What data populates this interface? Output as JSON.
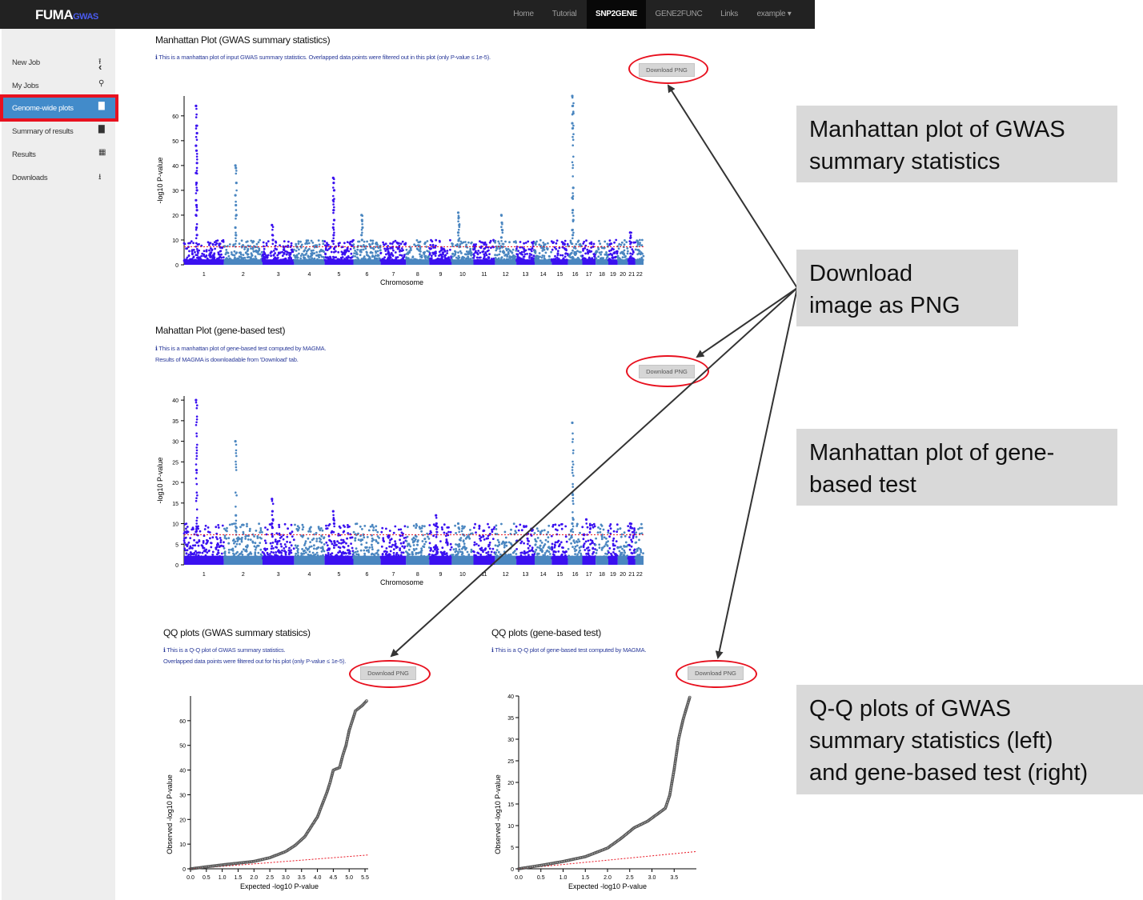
{
  "navbar": {
    "brand_main": "FUMA",
    "brand_sub": "GWAS",
    "items": [
      {
        "label": "Home",
        "active": false
      },
      {
        "label": "Tutorial",
        "active": false
      },
      {
        "label": "SNP2GENE",
        "active": true
      },
      {
        "label": "GENE2FUNC",
        "active": false
      },
      {
        "label": "Links",
        "active": false
      },
      {
        "label": "example ▾",
        "active": false
      }
    ]
  },
  "sidebar": {
    "collapse_icon": "chevron-left-icon",
    "items": [
      {
        "label": "New Job",
        "icon": "upload-icon",
        "active": false
      },
      {
        "label": "My Jobs",
        "icon": "search-icon",
        "active": false
      },
      {
        "label": "Genome-wide plots",
        "icon": "bar-chart-icon",
        "active": true
      },
      {
        "label": "Summary of results",
        "icon": "bar-chart-icon",
        "active": false
      },
      {
        "label": "Results",
        "icon": "table-icon",
        "active": false
      },
      {
        "label": "Downloads",
        "icon": "download-icon",
        "active": false
      }
    ]
  },
  "sections": {
    "manhattan_snp": {
      "title": "Manhattan Plot (GWAS summary statistics)",
      "note": "ℹ This is a manhattan plot of input GWAS summary statistics. Overlapped data points were filtered out in this plot (only P-value ≤ 1e-5).",
      "button": "Download PNG"
    },
    "manhattan_gene": {
      "title": "Mahattan Plot (gene-based test)",
      "note1": "ℹ This is a manhattan plot of gene-based test computed by MAGMA.",
      "note2": "Results of MAGMA is downloadable from 'Download' tab.",
      "button": "Download PNG"
    },
    "qq_snp": {
      "title": "QQ plots (GWAS summary statisics)",
      "note1": "ℹ This is a Q-Q plot of GWAS summary statistics.",
      "note2": "Overlapped data points were filtered out for his plot (only P-value ≤ 1e-5).",
      "button": "Download PNG"
    },
    "qq_gene": {
      "title": "QQ plots (gene-based test)",
      "note1": "ℹ This is a Q-Q plot of gene-based test computed by MAGMA.",
      "button": "Download PNG"
    }
  },
  "callouts": {
    "c1": [
      "Manhattan  plot of GWAS",
      "summary statistics"
    ],
    "c2": [
      "Download",
      "image as PNG"
    ],
    "c3": [
      "Manhattan  plot of gene-",
      "based test"
    ],
    "c4": [
      "Q-Q plots of GWAS",
      "summary statistics (left)",
      "and gene-based test (right)"
    ]
  },
  "colors": {
    "navbar": "#222222",
    "sidebar": "#eeeeee",
    "active_tab": "#428bca",
    "highlight_red": "#e8111f",
    "chr_odd": "#3a10f0",
    "chr_even": "#4a86c0",
    "threshold": "#e8111f",
    "callout_bg": "#d9d9d9"
  },
  "chart_data": [
    {
      "type": "scatter",
      "id": "manhattan_snp",
      "xlabel": "Chromosome",
      "ylabel": "-log10 P-value",
      "ylim": [
        0,
        68
      ],
      "yticks": [
        0,
        10,
        20,
        30,
        40,
        50,
        60
      ],
      "threshold": 7.3,
      "categories": [
        "1",
        "2",
        "3",
        "4",
        "5",
        "6",
        "7",
        "8",
        "9",
        "10",
        "11",
        "12",
        "13",
        "14",
        "15",
        "16",
        "17",
        "18",
        "19",
        "20",
        "21",
        "22"
      ],
      "peaks": [
        {
          "chr": "1",
          "values": [
            64,
            56,
            53,
            48,
            46,
            41,
            37,
            33,
            30,
            26,
            24,
            22,
            20,
            15,
            12
          ]
        },
        {
          "chr": "2",
          "values": [
            40,
            39,
            33,
            28,
            24,
            20,
            15,
            12
          ]
        },
        {
          "chr": "3",
          "values": [
            16,
            12,
            10
          ]
        },
        {
          "chr": "5",
          "values": [
            35,
            33,
            30,
            26,
            22,
            18,
            15,
            12
          ]
        },
        {
          "chr": "6",
          "values": [
            20,
            18,
            15,
            12,
            10
          ]
        },
        {
          "chr": "10",
          "values": [
            21,
            19,
            16,
            13,
            10
          ]
        },
        {
          "chr": "12",
          "values": [
            20,
            17,
            14,
            11
          ]
        },
        {
          "chr": "16",
          "values": [
            68,
            64,
            61,
            57,
            55,
            31,
            27,
            22,
            18,
            14,
            12
          ]
        },
        {
          "chr": "21",
          "values": [
            13,
            11,
            9
          ]
        }
      ]
    },
    {
      "type": "scatter",
      "id": "manhattan_gene",
      "xlabel": "Chromosome",
      "ylabel": "-log10 P-value",
      "ylim": [
        0,
        41
      ],
      "yticks": [
        0,
        5,
        10,
        15,
        20,
        25,
        30,
        35,
        40
      ],
      "threshold": 7.3,
      "categories": [
        "1",
        "2",
        "3",
        "4",
        "5",
        "6",
        "7",
        "8",
        "9",
        "10",
        "11",
        "12",
        "13",
        "14",
        "15",
        "16",
        "17",
        "18",
        "19",
        "20",
        "21",
        "22"
      ],
      "peaks": [
        {
          "chr": "1",
          "values": [
            40,
            23,
            9,
            8
          ]
        },
        {
          "chr": "2",
          "values": [
            30,
            12,
            9
          ]
        },
        {
          "chr": "3",
          "values": [
            16,
            13,
            11,
            10,
            9
          ]
        },
        {
          "chr": "5",
          "values": [
            13,
            11,
            10
          ]
        },
        {
          "chr": "9",
          "values": [
            12,
            10
          ]
        },
        {
          "chr": "10",
          "values": [
            10,
            9
          ]
        },
        {
          "chr": "16",
          "values": [
            34.5,
            17,
            11,
            10
          ]
        },
        {
          "chr": "17",
          "values": [
            11
          ]
        },
        {
          "chr": "21",
          "values": [
            10,
            9
          ]
        }
      ]
    },
    {
      "type": "scatter",
      "id": "qq_snp",
      "xlabel": "Expected -log10 P-value",
      "ylabel": "Observed -log10 P-value",
      "xlim": [
        0,
        5.6
      ],
      "ylim": [
        0,
        70
      ],
      "xticks": [
        0.0,
        0.5,
        1.0,
        1.5,
        2.0,
        2.5,
        3.0,
        3.5,
        4.0,
        4.5,
        5.0,
        5.5
      ],
      "yticks": [
        0,
        10,
        20,
        30,
        40,
        50,
        60
      ],
      "x": [
        0.0,
        0.5,
        1.0,
        1.5,
        2.0,
        2.5,
        3.0,
        3.3,
        3.6,
        3.8,
        4.0,
        4.15,
        4.3,
        4.4,
        4.5,
        4.7,
        4.8,
        4.9,
        5.0,
        5.1,
        5.2,
        5.3,
        5.4,
        5.55
      ],
      "y": [
        0,
        0.8,
        1.6,
        2.3,
        3.0,
        4.5,
        7.0,
        9.5,
        13,
        17,
        21,
        26,
        31,
        35,
        40,
        41,
        46,
        50,
        56,
        60,
        64,
        65,
        66,
        68
      ],
      "reference_line": [
        [
          0,
          0
        ],
        [
          5.6,
          5.6
        ]
      ]
    },
    {
      "type": "scatter",
      "id": "qq_gene",
      "xlabel": "Expected -log10 P-value",
      "ylabel": "Observed -log10 P-value",
      "xlim": [
        0,
        4.0
      ],
      "ylim": [
        0,
        40
      ],
      "xticks": [
        0.0,
        0.5,
        1.0,
        1.5,
        2.0,
        2.5,
        3.0,
        3.5
      ],
      "yticks": [
        0,
        5,
        10,
        15,
        20,
        25,
        30,
        35,
        40
      ],
      "x": [
        0.0,
        0.5,
        1.0,
        1.5,
        2.0,
        2.3,
        2.6,
        2.9,
        3.1,
        3.3,
        3.4,
        3.5,
        3.6,
        3.7,
        3.85
      ],
      "y": [
        0,
        0.8,
        1.7,
        2.8,
        4.8,
        7.0,
        9.5,
        11,
        12.5,
        14,
        17,
        23,
        30,
        34.5,
        39.7
      ],
      "reference_line": [
        [
          0,
          0
        ],
        [
          4.0,
          4.0
        ]
      ]
    }
  ]
}
